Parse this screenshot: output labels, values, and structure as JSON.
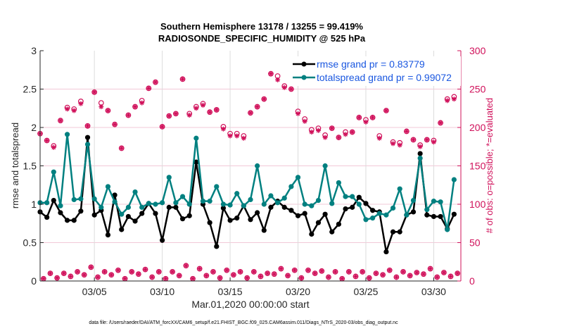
{
  "chart_data": {
    "type": "line",
    "title_line1": "Southern Hemisphere 13178 / 13255 = 99.419%",
    "title_line2": "RADIOSONDE_SPECIFIC_HUMIDITY @ 525 hPa",
    "xlabel": "Mar.01,2020 00:00:00 start",
    "ylabel_left": "rmse and totalspread",
    "ylabel_right": "# of obs: o=possible; *=evaluated",
    "footnote": "data file: /Users/raeder/DAI/ATM_forcXX/CAM6_setup/f.e21.FHIST_BGC.f09_025.CAM6assim.011/Diags_NTrS_2020-03/obs_diag_output.nc",
    "xlim_days": [
      1,
      32
    ],
    "ylim_left": [
      0,
      3
    ],
    "ylim_right": [
      0,
      300
    ],
    "yticks_left": [
      "0",
      "0.5",
      "1",
      "1.5",
      "2",
      "2.5",
      "3"
    ],
    "yticks_left_values": [
      0,
      0.5,
      1,
      1.5,
      2,
      2.5,
      3
    ],
    "yticks_right": [
      "0",
      "50",
      "100",
      "150",
      "200",
      "250",
      "300"
    ],
    "yticks_right_values": [
      0,
      50,
      100,
      150,
      200,
      250,
      300
    ],
    "xticks": [
      "03/05",
      "03/10",
      "03/15",
      "03/20",
      "03/25",
      "03/30"
    ],
    "xticks_days": [
      5,
      10,
      15,
      20,
      25,
      30
    ],
    "grid": true,
    "legend_position": "top-right",
    "legend": [
      {
        "name": "rmse grand pr = 0.83779",
        "color": "#000000"
      },
      {
        "name": "totalspread grand pr = 0.99072",
        "color": "#008080"
      }
    ],
    "colors": {
      "rmse": "#000000",
      "spread": "#008080",
      "counts": "#d0105a",
      "grid": "#f2c9d7"
    },
    "x_days_main": [
      1.0,
      1.5,
      2.0,
      2.5,
      3.0,
      3.5,
      4.0,
      4.5,
      5.0,
      5.5,
      6.0,
      6.5,
      7.0,
      7.5,
      8.0,
      8.5,
      9.0,
      9.5,
      10.0,
      10.5,
      11.0,
      11.5,
      12.0,
      12.5,
      13.0,
      13.5,
      14.0,
      14.5,
      15.0,
      15.5,
      16.0,
      16.5,
      17.0,
      17.5,
      18.0,
      18.5,
      19.0,
      19.5,
      20.0,
      20.5,
      21.0,
      21.5,
      22.0,
      22.5,
      23.0,
      23.5,
      24.0,
      24.5,
      25.0,
      25.5,
      26.0,
      26.5,
      27.0,
      27.5,
      28.0,
      28.5,
      29.0,
      29.5,
      30.0,
      30.5,
      31.0,
      31.5
    ],
    "series": [
      {
        "name": "rmse",
        "values": [
          0.9,
          0.83,
          1.05,
          0.89,
          0.79,
          0.79,
          0.91,
          1.87,
          0.86,
          0.92,
          0.6,
          1.12,
          0.67,
          0.84,
          0.78,
          0.88,
          1.01,
          0.88,
          0.53,
          0.96,
          0.96,
          0.81,
          0.85,
          1.55,
          1.0,
          0.76,
          0.45,
          0.95,
          0.79,
          0.82,
          0.98,
          0.8,
          0.89,
          0.66,
          0.96,
          1.04,
          0.96,
          0.92,
          0.85,
          0.88,
          0.61,
          0.76,
          0.87,
          0.64,
          0.74,
          0.94,
          0.96,
          1.09,
          1.01,
          0.92,
          0.9,
          0.38,
          0.64,
          0.64,
          0.86,
          0.9,
          1.66,
          0.86,
          0.84,
          0.84,
          0.68,
          0.87
        ]
      },
      {
        "name": "totalspread",
        "values": [
          1.02,
          1.02,
          1.42,
          0.98,
          1.91,
          1.06,
          1.07,
          1.78,
          1.07,
          0.96,
          1.23,
          1.03,
          0.87,
          0.96,
          1.16,
          0.96,
          1.01,
          1.0,
          1.02,
          1.35,
          1.02,
          1.1,
          1.0,
          1.86,
          1.04,
          1.04,
          1.23,
          1.0,
          0.99,
          1.14,
          0.98,
          1.06,
          1.5,
          1.0,
          1.11,
          1.02,
          1.08,
          1.23,
          1.35,
          1.0,
          0.98,
          1.05,
          1.5,
          1.01,
          1.28,
          1.1,
          1.1,
          1.0,
          0.8,
          0.82,
          0.88,
          0.86,
          0.95,
          1.2,
          0.86,
          1.05,
          1.6,
          0.93,
          1.04,
          1.03,
          0.67,
          1.32
        ]
      },
      {
        "name": "obs_possible_main",
        "values": [
          192,
          183,
          176,
          209,
          226,
          224,
          234,
          202,
          246,
          232,
          222,
          204,
          173,
          216,
          227,
          235,
          251,
          259,
          201,
          215,
          218,
          263,
          218,
          227,
          231,
          220,
          223,
          201,
          192,
          192,
          189,
          219,
          227,
          237,
          270,
          267,
          254,
          250,
          221,
          211,
          197,
          199,
          190,
          199,
          187,
          194,
          194,
          213,
          210,
          213,
          189,
          222,
          181,
          180,
          195,
          184,
          177,
          184,
          183,
          206,
          237,
          240
        ]
      },
      {
        "name": "obs_evaluated_main",
        "values": [
          192,
          183,
          174,
          209,
          224,
          222,
          231,
          202,
          246,
          227,
          222,
          204,
          173,
          216,
          227,
          232,
          251,
          259,
          201,
          215,
          218,
          263,
          216,
          225,
          229,
          220,
          223,
          198,
          189,
          189,
          186,
          219,
          227,
          237,
          270,
          262,
          252,
          250,
          218,
          208,
          194,
          196,
          187,
          199,
          187,
          191,
          194,
          213,
          207,
          213,
          186,
          222,
          179,
          177,
          195,
          184,
          175,
          184,
          181,
          206,
          235,
          237
        ]
      },
      {
        "name": "obs_low_counts",
        "values": [
          3,
          10,
          4,
          10,
          6,
          12,
          8,
          18,
          5,
          12,
          8,
          14,
          3,
          12,
          9,
          15,
          5,
          12,
          3,
          12,
          7,
          20,
          3,
          16,
          7,
          12,
          4,
          14,
          8,
          12,
          4,
          12,
          6,
          10,
          9,
          16,
          7,
          14,
          4,
          14,
          10,
          13,
          5,
          12,
          3,
          12,
          6,
          12,
          4,
          10,
          8,
          14,
          5,
          12,
          7,
          11,
          9,
          16,
          5,
          11,
          6,
          10
        ]
      }
    ]
  }
}
